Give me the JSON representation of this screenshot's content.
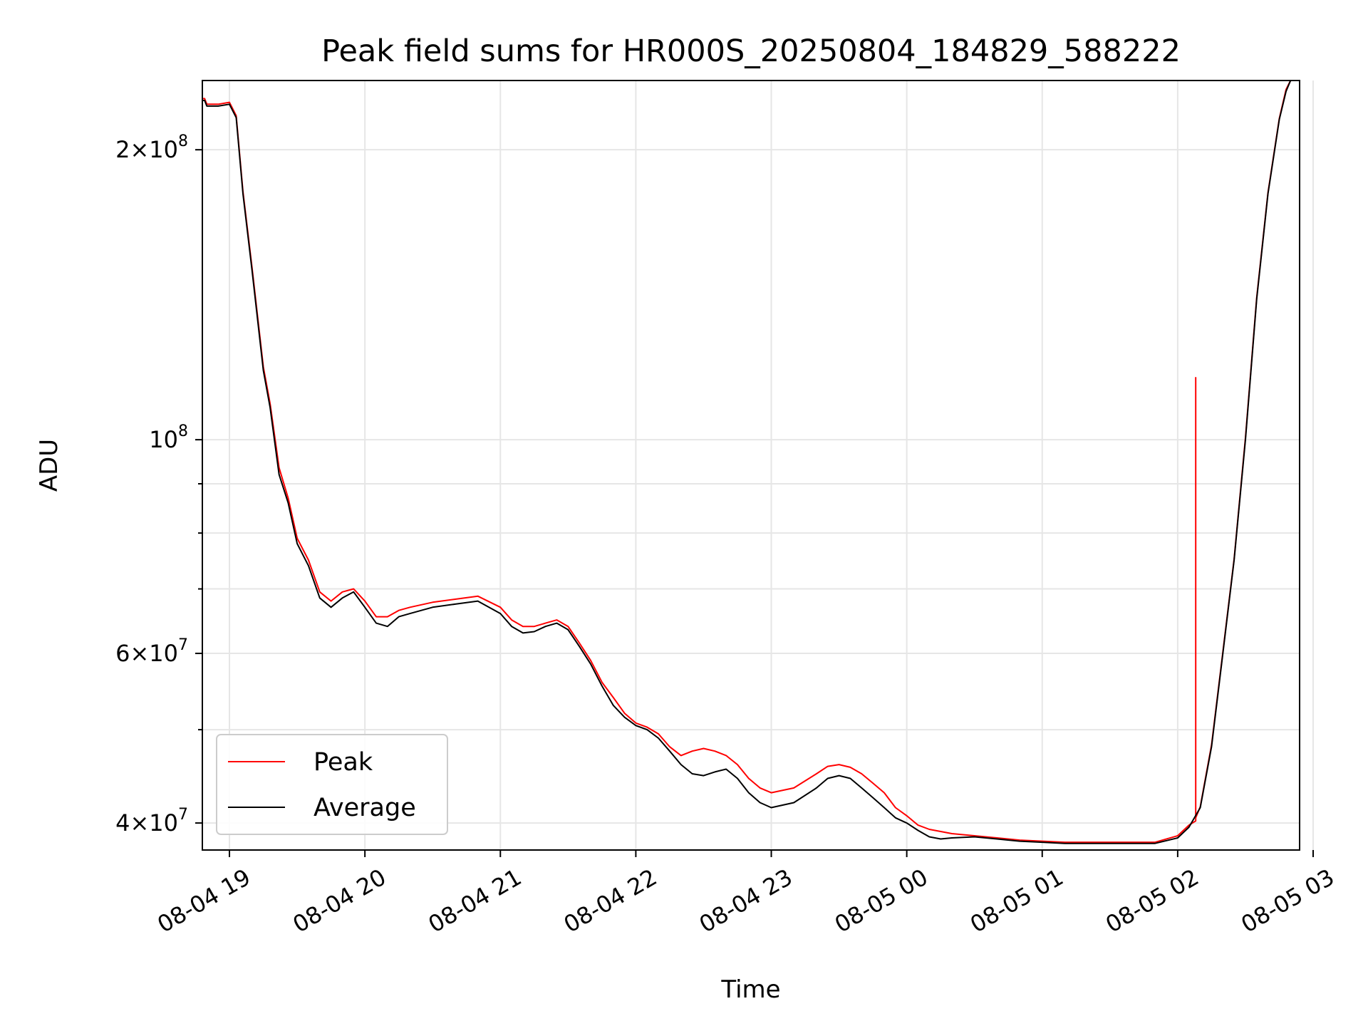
{
  "chart_data": {
    "type": "line",
    "title": "Peak field sums for HR000S_20250804_184829_588222",
    "xlabel": "Time",
    "ylabel": "ADU",
    "yscale": "log",
    "ylim": [
      37500000,
      236000000
    ],
    "xlim": [
      "08-04 18:48",
      "08-05 02:54"
    ],
    "grid": true,
    "legend": "lower-left",
    "xticks": [
      "08-04 19",
      "08-04 20",
      "08-04 21",
      "08-04 22",
      "08-04 23",
      "08-05 00",
      "08-05 01",
      "08-05 02",
      "08-05 03"
    ],
    "yticks": [
      {
        "value": 200000000,
        "mantissa": "2",
        "exponent": "8",
        "show_mantissa": true
      },
      {
        "value": 100000000,
        "mantissa": "",
        "exponent": "8",
        "show_mantissa": false
      },
      {
        "value": 60000000,
        "mantissa": "6",
        "exponent": "7",
        "show_mantissa": true
      },
      {
        "value": 40000000,
        "mantissa": "4",
        "exponent": "7",
        "show_mantissa": true
      }
    ],
    "series": [
      {
        "name": "Average",
        "color": "#000000",
        "x": [
          "08-04 18:48",
          "08-04 18:49",
          "08-04 18:50",
          "08-04 18:55",
          "08-04 19:00",
          "08-04 19:03",
          "08-04 19:06",
          "08-04 19:10",
          "08-04 19:15",
          "08-04 19:18",
          "08-04 19:22",
          "08-04 19:26",
          "08-04 19:30",
          "08-04 19:35",
          "08-04 19:40",
          "08-04 19:45",
          "08-04 19:50",
          "08-04 19:55",
          "08-04 20:00",
          "08-04 20:05",
          "08-04 20:10",
          "08-04 20:15",
          "08-04 20:20",
          "08-04 20:30",
          "08-04 20:40",
          "08-04 20:50",
          "08-04 21:00",
          "08-04 21:05",
          "08-04 21:10",
          "08-04 21:15",
          "08-04 21:20",
          "08-04 21:25",
          "08-04 21:30",
          "08-04 21:35",
          "08-04 21:40",
          "08-04 21:45",
          "08-04 21:50",
          "08-04 21:55",
          "08-04 22:00",
          "08-04 22:05",
          "08-04 22:10",
          "08-04 22:15",
          "08-04 22:20",
          "08-04 22:25",
          "08-04 22:30",
          "08-04 22:35",
          "08-04 22:40",
          "08-04 22:45",
          "08-04 22:50",
          "08-04 22:55",
          "08-04 23:00",
          "08-04 23:10",
          "08-04 23:20",
          "08-04 23:25",
          "08-04 23:30",
          "08-04 23:35",
          "08-04 23:40",
          "08-04 23:45",
          "08-04 23:50",
          "08-04 23:55",
          "08-05 00:00",
          "08-05 00:05",
          "08-05 00:10",
          "08-05 00:15",
          "08-05 00:20",
          "08-05 00:30",
          "08-05 00:40",
          "08-05 00:50",
          "08-05 01:00",
          "08-05 01:10",
          "08-05 01:20",
          "08-05 01:30",
          "08-05 01:40",
          "08-05 01:50",
          "08-05 02:00",
          "08-05 02:05",
          "08-05 02:10",
          "08-05 02:15",
          "08-05 02:20",
          "08-05 02:25",
          "08-05 02:30",
          "08-05 02:35",
          "08-05 02:40",
          "08-05 02:45",
          "08-05 02:48",
          "08-05 02:50"
        ],
        "values": [
          225000000,
          225000000,
          222000000,
          222000000,
          223000000,
          216000000,
          180000000,
          150000000,
          118000000,
          108000000,
          92000000,
          86000000,
          78000000,
          74000000,
          68500000,
          67000000,
          68500000,
          69500000,
          67000000,
          64500000,
          64000000,
          65500000,
          66000000,
          67000000,
          67500000,
          68000000,
          66000000,
          64000000,
          63000000,
          63200000,
          64000000,
          64500000,
          63500000,
          61000000,
          58500000,
          55500000,
          53000000,
          51500000,
          50500000,
          50000000,
          49000000,
          47500000,
          46000000,
          45000000,
          44800000,
          45200000,
          45500000,
          44500000,
          43000000,
          42000000,
          41500000,
          42000000,
          43500000,
          44500000,
          44800000,
          44500000,
          43500000,
          42500000,
          41500000,
          40500000,
          40000000,
          39300000,
          38700000,
          38500000,
          38600000,
          38700000,
          38500000,
          38300000,
          38200000,
          38100000,
          38100000,
          38100000,
          38100000,
          38100000,
          38600000,
          39600000,
          41500000,
          48000000,
          60000000,
          75000000,
          100000000,
          140000000,
          180000000,
          215000000,
          230000000,
          236000000
        ]
      },
      {
        "name": "Peak",
        "color": "#ff0000",
        "x": [
          "08-04 18:48",
          "08-04 18:49",
          "08-04 18:50",
          "08-04 18:55",
          "08-04 19:00",
          "08-04 19:03",
          "08-04 19:06",
          "08-04 19:10",
          "08-04 19:15",
          "08-04 19:18",
          "08-04 19:22",
          "08-04 19:26",
          "08-04 19:30",
          "08-04 19:35",
          "08-04 19:40",
          "08-04 19:45",
          "08-04 19:50",
          "08-04 19:55",
          "08-04 20:00",
          "08-04 20:05",
          "08-04 20:10",
          "08-04 20:15",
          "08-04 20:20",
          "08-04 20:30",
          "08-04 20:40",
          "08-04 20:50",
          "08-04 21:00",
          "08-04 21:05",
          "08-04 21:10",
          "08-04 21:15",
          "08-04 21:20",
          "08-04 21:25",
          "08-04 21:30",
          "08-04 21:35",
          "08-04 21:40",
          "08-04 21:45",
          "08-04 21:50",
          "08-04 21:55",
          "08-04 22:00",
          "08-04 22:05",
          "08-04 22:10",
          "08-04 22:15",
          "08-04 22:20",
          "08-04 22:25",
          "08-04 22:30",
          "08-04 22:35",
          "08-04 22:40",
          "08-04 22:45",
          "08-04 22:50",
          "08-04 22:55",
          "08-04 23:00",
          "08-04 23:10",
          "08-04 23:20",
          "08-04 23:25",
          "08-04 23:30",
          "08-04 23:35",
          "08-04 23:40",
          "08-04 23:45",
          "08-04 23:50",
          "08-04 23:55",
          "08-05 00:00",
          "08-05 00:05",
          "08-05 00:10",
          "08-05 00:15",
          "08-05 00:20",
          "08-05 00:30",
          "08-05 00:40",
          "08-05 00:50",
          "08-05 01:00",
          "08-05 01:10",
          "08-05 01:20",
          "08-05 01:30",
          "08-05 01:40",
          "08-05 01:50",
          "08-05 02:00",
          "08-05 02:05",
          "08-05 02:08",
          "08-05 02:08",
          "08-05 02:08",
          "08-05 02:10",
          "08-05 02:15",
          "08-05 02:20",
          "08-05 02:25",
          "08-05 02:30",
          "08-05 02:35",
          "08-05 02:40",
          "08-05 02:45",
          "08-05 02:48",
          "08-05 02:50"
        ],
        "values": [
          226000000,
          226000000,
          223000000,
          223000000,
          224000000,
          217000000,
          181000000,
          151000000,
          119000000,
          109000000,
          93500000,
          87000000,
          79000000,
          75000000,
          69500000,
          68000000,
          69500000,
          70000000,
          68000000,
          65500000,
          65500000,
          66500000,
          67000000,
          67800000,
          68300000,
          68800000,
          67000000,
          65000000,
          64000000,
          64000000,
          64500000,
          65000000,
          64000000,
          61500000,
          59000000,
          56000000,
          54000000,
          52000000,
          50800000,
          50300000,
          49500000,
          48000000,
          47000000,
          47500000,
          47800000,
          47500000,
          47000000,
          46000000,
          44500000,
          43500000,
          43000000,
          43500000,
          45000000,
          45800000,
          46000000,
          45700000,
          45000000,
          44000000,
          43000000,
          41500000,
          40700000,
          39800000,
          39400000,
          39200000,
          39000000,
          38800000,
          38600000,
          38400000,
          38300000,
          38200000,
          38200000,
          38200000,
          38200000,
          38200000,
          38800000,
          39800000,
          40200000,
          116000000,
          40500000,
          41600000,
          48200000,
          60200000,
          75200000,
          100500000,
          140500000,
          180500000,
          215500000,
          231000000,
          236500000
        ]
      }
    ]
  }
}
